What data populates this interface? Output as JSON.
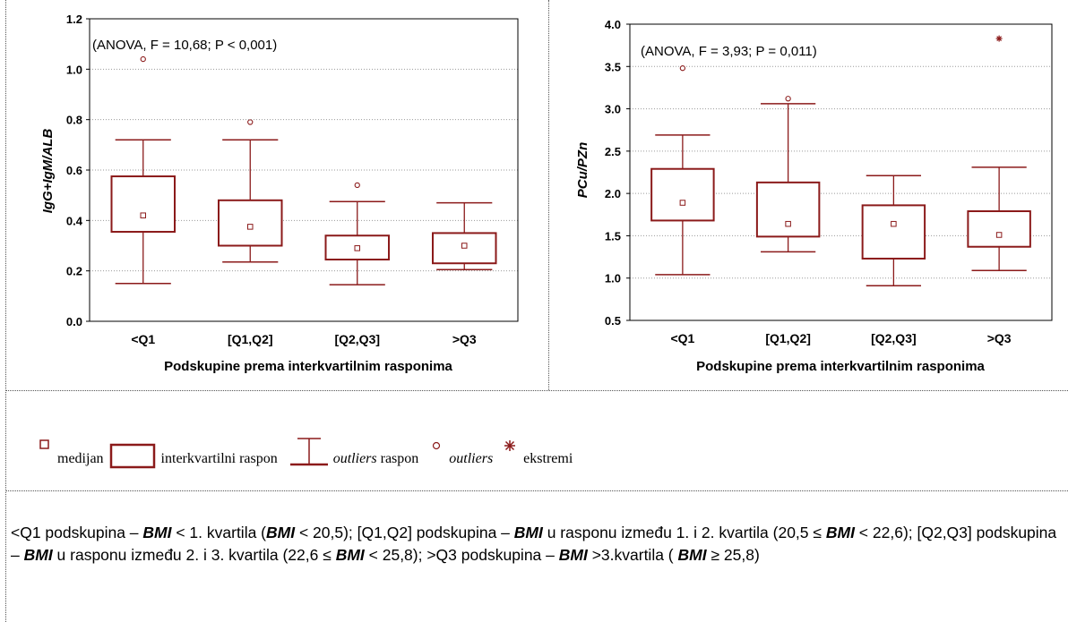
{
  "colors": {
    "box": "#8b1a1a",
    "grid": "#9a9a9a",
    "frame": "#000000"
  },
  "chart_data": [
    {
      "type": "box",
      "ylabel": "IgG+IgM/ALB",
      "xlabel": "Podskupine prema interkvartilnim rasponima",
      "annotation": "(ANOVA, F = 10,68; P < 0,001)",
      "ylim": [
        0,
        1.2
      ],
      "yticks": [
        0.0,
        0.2,
        0.4,
        0.6,
        0.8,
        1.0,
        1.2
      ],
      "ytick_labels": [
        "0.0",
        "0.2",
        "0.4",
        "0.6",
        "0.8",
        "1.0",
        "1.2"
      ],
      "categories": [
        "<Q1",
        "[Q1,Q2]",
        "[Q2,Q3]",
        ">Q3"
      ],
      "grid": true,
      "boxes": [
        {
          "median": 0.42,
          "q1": 0.355,
          "q3": 0.575,
          "whisker_low": 0.15,
          "whisker_high": 0.72,
          "outliers": [
            1.04
          ],
          "extremes": []
        },
        {
          "median": 0.375,
          "q1": 0.3,
          "q3": 0.48,
          "whisker_low": 0.235,
          "whisker_high": 0.72,
          "outliers": [
            0.79
          ],
          "extremes": []
        },
        {
          "median": 0.29,
          "q1": 0.245,
          "q3": 0.34,
          "whisker_low": 0.145,
          "whisker_high": 0.475,
          "outliers": [
            0.54
          ],
          "extremes": []
        },
        {
          "median": 0.3,
          "q1": 0.23,
          "q3": 0.35,
          "whisker_low": 0.205,
          "whisker_high": 0.47,
          "outliers": [],
          "extremes": []
        }
      ]
    },
    {
      "type": "box",
      "ylabel": "PCu/PZn",
      "xlabel": "Podskupine prema interkvartilnim rasponima",
      "annotation": "(ANOVA, F = 3,93; P = 0,011)",
      "ylim": [
        0.5,
        4.0
      ],
      "yticks": [
        0.5,
        1.0,
        1.5,
        2.0,
        2.5,
        3.0,
        3.5,
        4.0
      ],
      "ytick_labels": [
        "0.5",
        "1.0",
        "1.5",
        "2.0",
        "2.5",
        "3.0",
        "3.5",
        "4.0"
      ],
      "categories": [
        "<Q1",
        "[Q1,Q2]",
        "[Q2,Q3]",
        ">Q3"
      ],
      "grid": true,
      "boxes": [
        {
          "median": 1.89,
          "q1": 1.68,
          "q3": 2.29,
          "whisker_low": 1.04,
          "whisker_high": 2.69,
          "outliers": [
            3.48
          ],
          "extremes": []
        },
        {
          "median": 1.64,
          "q1": 1.49,
          "q3": 2.13,
          "whisker_low": 1.31,
          "whisker_high": 3.06,
          "outliers": [
            3.12
          ],
          "extremes": []
        },
        {
          "median": 1.64,
          "q1": 1.23,
          "q3": 1.86,
          "whisker_low": 0.91,
          "whisker_high": 2.21,
          "outliers": [],
          "extremes": []
        },
        {
          "median": 1.51,
          "q1": 1.37,
          "q3": 1.79,
          "whisker_low": 1.09,
          "whisker_high": 2.31,
          "outliers": [],
          "extremes": [
            3.83
          ]
        }
      ]
    }
  ],
  "legend": {
    "median": "medijan",
    "iqr": "interkvartilni raspon",
    "range_italic": "outliers",
    "range_rest": " raspon",
    "outliers": "outliers",
    "extremes": "ekstremi"
  },
  "footnote": {
    "p1": "<Q1 podskupina – ",
    "b1": "BMI",
    "p2": " < 1. kvartila (",
    "b2": "BMI",
    "p3": " < 20,5); [Q1,Q2] podskupina – ",
    "b3": "BMI",
    "p4": " u rasponu između 1. i 2. kvartila (20,5 ≤ ",
    "b4": "BMI",
    "p5": " < 22,6); [Q2,Q3] podskupina – ",
    "b5": "BMI",
    "p6": " u rasponu između 2. i 3. kvartila (22,6 ≤ ",
    "b6": "BMI",
    "p7": " < 25,8); >Q3 podskupina – ",
    "b7": "BMI",
    "p8": " >3.kvartila ( ",
    "b8": "BMI",
    "p9": " ≥ 25,8)"
  }
}
